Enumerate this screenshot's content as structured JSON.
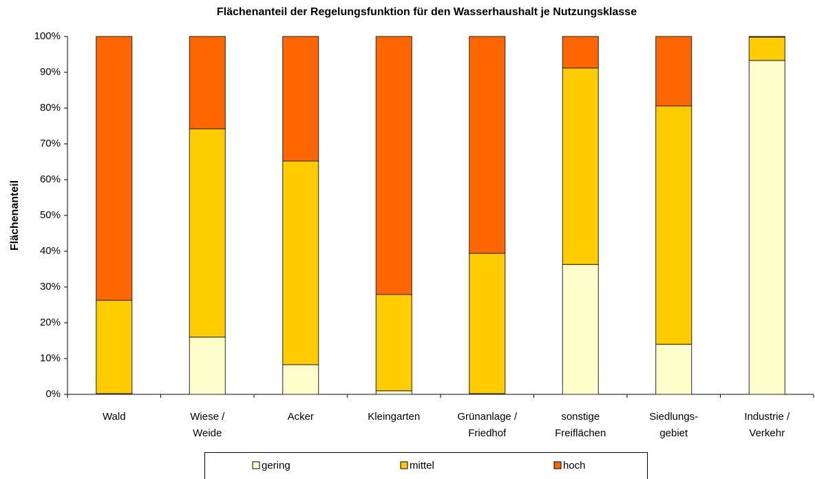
{
  "chart_data": {
    "type": "stacked_bar",
    "title": "Flächenanteil der Regelungsfunktion für den Wasserhaushalt je Nutzungsklasse",
    "y_label": "Flächenanteil",
    "categories": [
      "Wald",
      "Wiese /\nWeide",
      "Acker",
      "Kleingarten",
      "Grünanlage /\nFriedhof",
      "sonstige\nFreiflächen",
      "Siedlungs-\ngebiet",
      "Industrie /\nVerkehr"
    ],
    "series": [
      {
        "name": "gering",
        "color": "#ffffcc",
        "values": [
          0.2,
          16.0,
          8.3,
          1.0,
          0.2,
          36.3,
          14.0,
          93.3
        ]
      },
      {
        "name": "mittel",
        "color": "#ffcc00",
        "values": [
          26.1,
          58.2,
          56.9,
          26.9,
          39.2,
          54.9,
          66.6,
          6.5
        ]
      },
      {
        "name": "hoch",
        "color": "#ff6600",
        "values": [
          73.7,
          25.8,
          34.8,
          72.1,
          60.6,
          8.8,
          19.4,
          0.2
        ]
      }
    ],
    "ylim": [
      0,
      100
    ],
    "yticks": [
      {
        "value": 0,
        "label": "0%"
      },
      {
        "value": 10,
        "label": "10%"
      },
      {
        "value": 20,
        "label": "20%"
      },
      {
        "value": 30,
        "label": "30%"
      },
      {
        "value": 40,
        "label": "40%"
      },
      {
        "value": 50,
        "label": "50%"
      },
      {
        "value": 60,
        "label": "60%"
      },
      {
        "value": 70,
        "label": "70%"
      },
      {
        "value": 80,
        "label": "80%"
      },
      {
        "value": 90,
        "label": "90%"
      },
      {
        "value": 100,
        "label": "100%"
      }
    ],
    "legend": "bottom"
  }
}
